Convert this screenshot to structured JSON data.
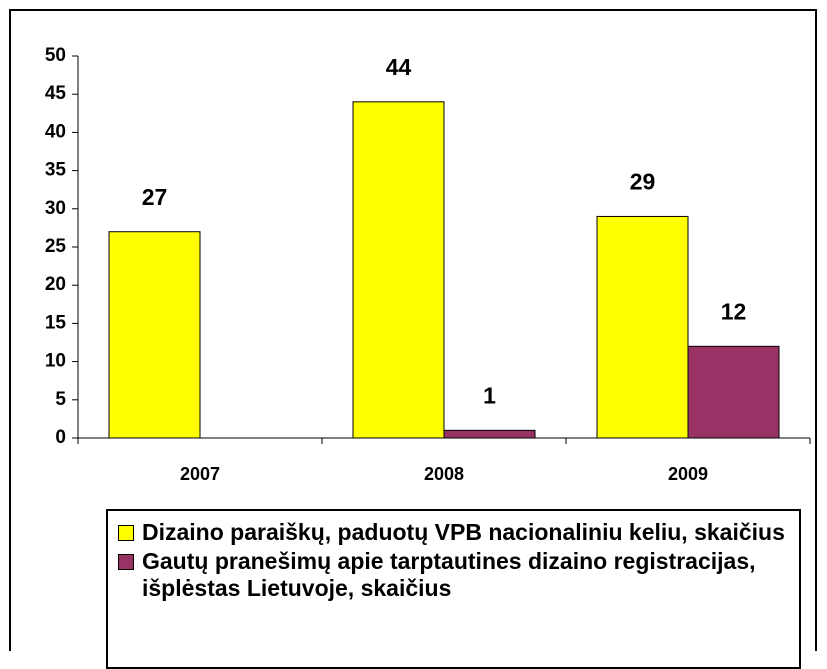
{
  "chart_data": {
    "type": "bar",
    "categories": [
      "2007",
      "2008",
      "2009"
    ],
    "series": [
      {
        "name": "Dizaino paraiškų, paduotų VPB nacionaliniu keliu, skaičius",
        "color": "#ffff00",
        "values": [
          27,
          44,
          29
        ]
      },
      {
        "name": "Gautų pranešimų apie tarptautines dizaino registracijas, išplėstas Lietuvoje, skaičius",
        "color": "#993366",
        "values": [
          null,
          1,
          12
        ]
      }
    ],
    "ylim": [
      0,
      50
    ],
    "yticks": [
      0,
      5,
      10,
      15,
      20,
      25,
      30,
      35,
      40,
      45,
      50
    ],
    "grid": false
  }
}
